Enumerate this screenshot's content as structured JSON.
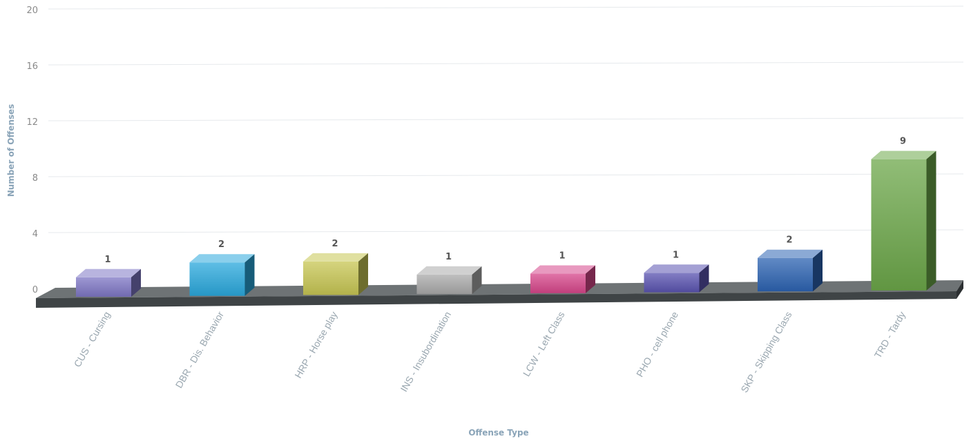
{
  "chart_data": {
    "type": "bar",
    "title": "",
    "xlabel": "Offense Type",
    "ylabel": "Number of Offenses",
    "ylim": [
      0,
      20
    ],
    "yticks": [
      "0",
      "4",
      "8",
      "12",
      "16",
      "20"
    ],
    "grid": true,
    "categories": [
      "CUS - Cursing",
      "DBR - Dis. Behavior",
      "HRP - Horse play",
      "INS - Insubordination",
      "LCW - Left Class",
      "PHO - cell phone",
      "SKP - Skipping Class",
      "TRD - Tardy"
    ],
    "values": [
      1,
      2,
      2,
      1,
      1,
      1,
      2,
      9
    ],
    "value_labels": [
      "1",
      "2",
      "2",
      "1",
      "1",
      "1",
      "2",
      "9"
    ],
    "colors": [
      "#7d76c4",
      "#2aa8dc",
      "#c7c653",
      "#a9a9a9",
      "#d6468a",
      "#5a53b0",
      "#2c63b2",
      "#6ca749"
    ]
  }
}
